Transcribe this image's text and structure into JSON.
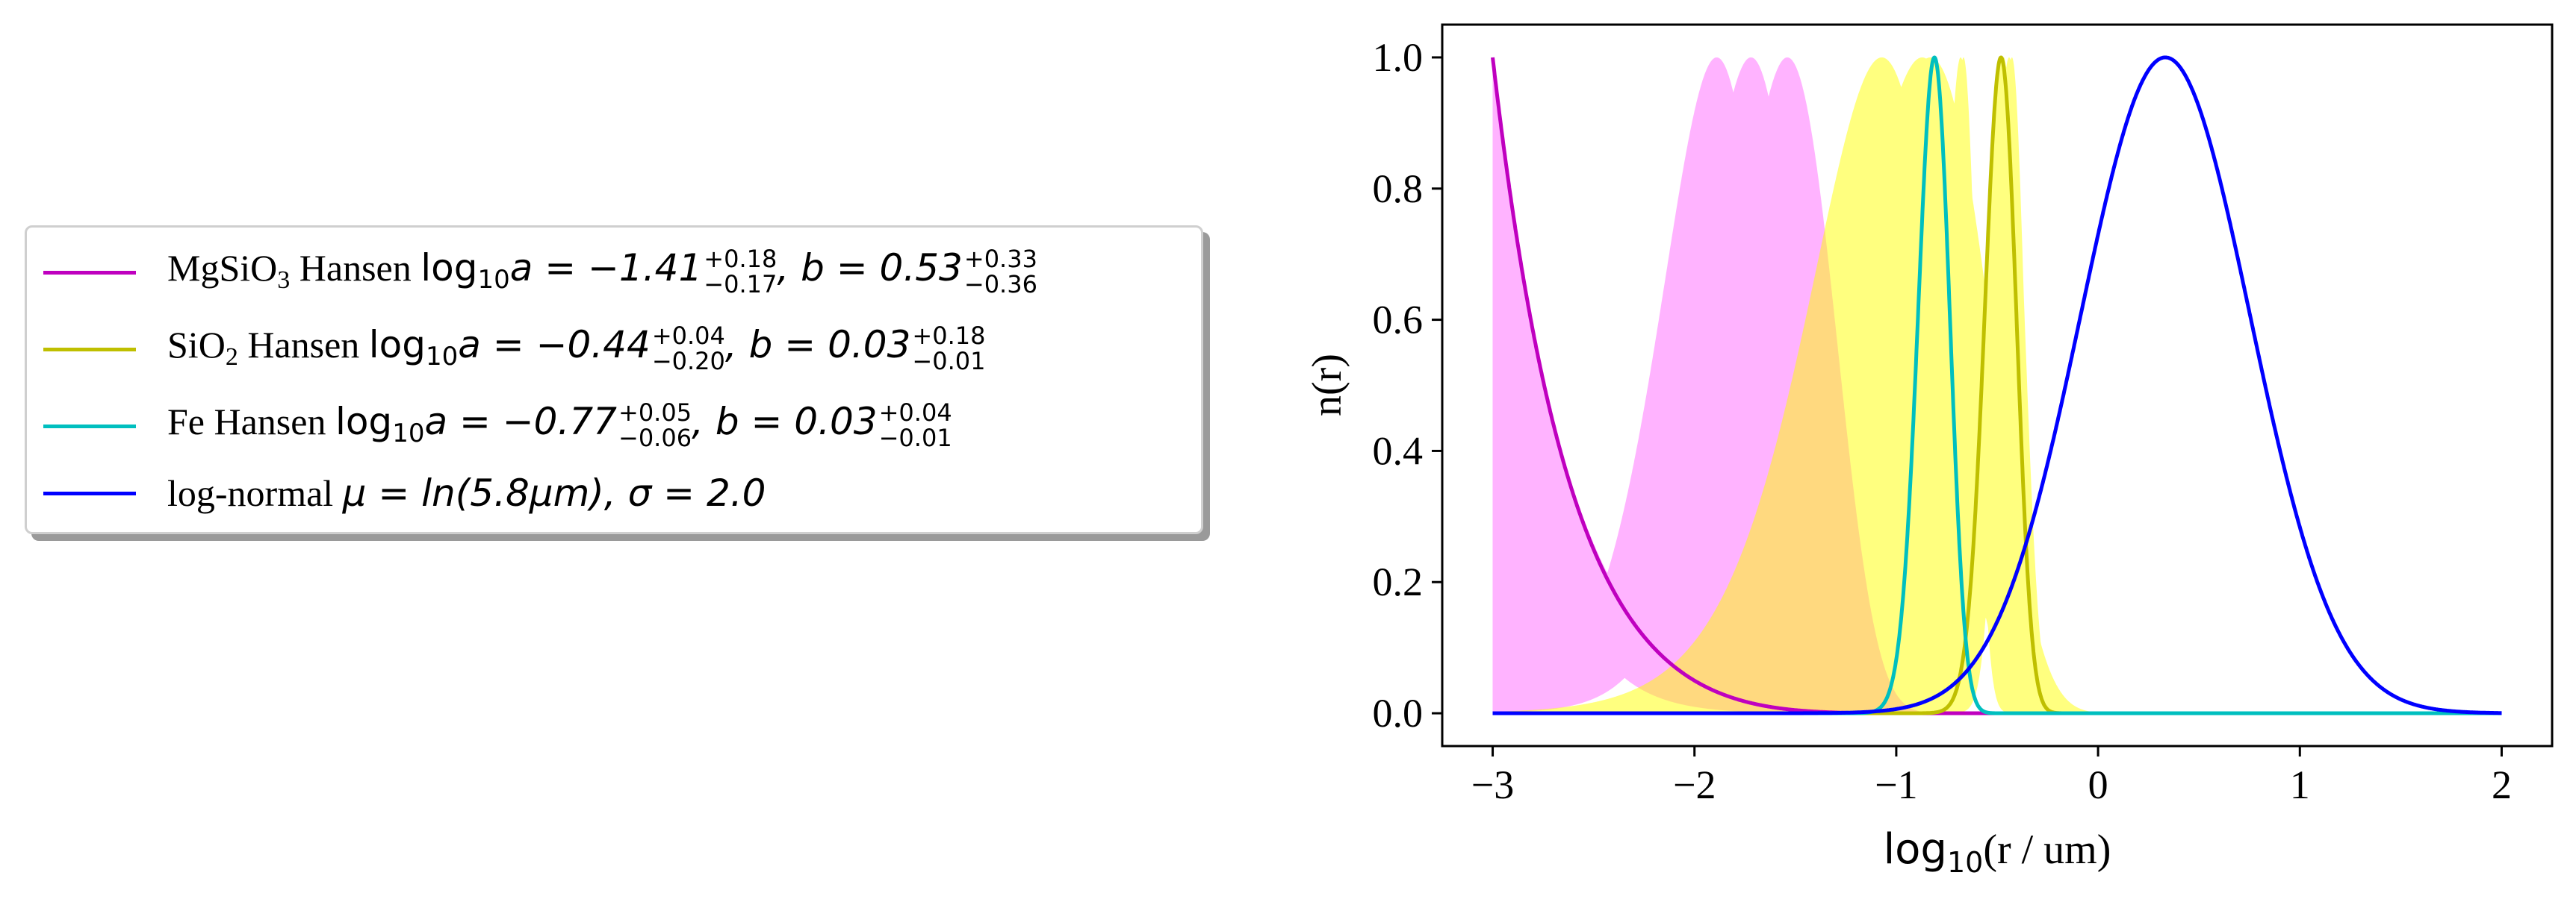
{
  "chart_data": {
    "type": "line",
    "title": "",
    "xlabel": {
      "prefix": "log",
      "subscript": "10",
      "suffix": "(r / um)"
    },
    "ylabel": "n(r)",
    "xlim": [
      -3.25,
      2.25
    ],
    "ylim": [
      -0.05,
      1.05
    ],
    "xticks": [
      -3,
      -2,
      -1,
      0,
      1,
      2
    ],
    "xtick_labels": [
      "−3",
      "−2",
      "−1",
      "0",
      "1",
      "2"
    ],
    "yticks": [
      0.0,
      0.2,
      0.4,
      0.6,
      0.8,
      1.0
    ],
    "ytick_labels": [
      "0.0",
      "0.2",
      "0.4",
      "0.6",
      "0.8",
      "1.0"
    ],
    "grid": false,
    "legend_position": "outside-left",
    "series": [
      {
        "name": "MgSiO3 Hansen",
        "color": "#bf00bf",
        "fill_color": "#ff80ff",
        "fill_opacity": 0.6,
        "log10a": -1.41,
        "log10a_err": [
          "+0.18",
          "-0.17"
        ],
        "b": 0.53,
        "b_err": [
          "+0.33",
          "-0.36"
        ]
      },
      {
        "name": "SiO2 Hansen",
        "color": "#bfbf00",
        "fill_color": "#ffff00",
        "fill_opacity": 0.5,
        "log10a": -0.44,
        "log10a_err": [
          "+0.04",
          "-0.20"
        ],
        "b": 0.03,
        "b_err": [
          "+0.18",
          "-0.01"
        ]
      },
      {
        "name": "Fe Hansen",
        "color": "#00bfbf",
        "log10a": -0.77,
        "log10a_err": [
          "+0.05",
          "-0.06"
        ],
        "b": 0.03,
        "b_err": [
          "+0.04",
          "-0.01"
        ]
      },
      {
        "name": "log-normal",
        "color": "#0000ff",
        "mu": "ln(5.8μm)",
        "sigma": 2.0
      }
    ]
  },
  "legend": {
    "entries": [
      {
        "label": "MgSiO",
        "sub": "3",
        "suffix": " Hansen ",
        "math_pre": "log",
        "math_sub": "10",
        "math_mid": "a = −1.41",
        "sup1": "+0.18",
        "sub1": "−0.17",
        "math_b": ", b = 0.53",
        "sup2": "+0.33",
        "sub2": "−0.36",
        "color": "#bf00bf"
      },
      {
        "label": "SiO",
        "sub": "2",
        "suffix": " Hansen ",
        "math_pre": "log",
        "math_sub": "10",
        "math_mid": "a = −0.44",
        "sup1": "+0.04",
        "sub1": "−0.20",
        "math_b": ", b = 0.03",
        "sup2": "+0.18",
        "sub2": "−0.01",
        "color": "#bfbf00"
      },
      {
        "label": "Fe",
        "sub": "",
        "suffix": " Hansen ",
        "math_pre": "log",
        "math_sub": "10",
        "math_mid": "a = −0.77",
        "sup1": "+0.05",
        "sub1": "−0.06",
        "math_b": ", b = 0.03",
        "sup2": "+0.04",
        "sub2": "−0.01",
        "color": "#00bfbf"
      },
      {
        "label": "log-normal ",
        "math": "μ = ln(5.8μm), σ = 2.0",
        "color": "#0000ff"
      }
    ]
  }
}
